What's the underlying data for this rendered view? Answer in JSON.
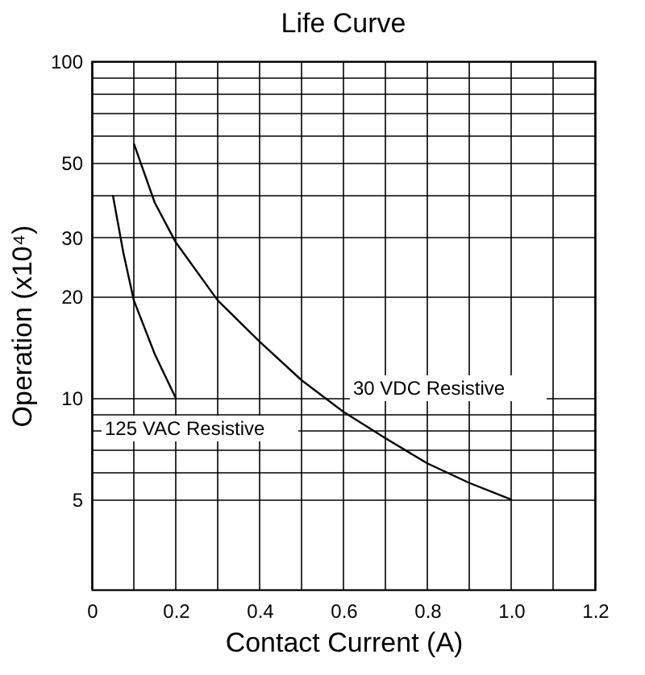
{
  "chart_data": {
    "type": "line",
    "title": "Life Curve",
    "xlabel": "Contact Current (A)",
    "ylabel": "Operation (x10⁴)",
    "log": "y",
    "grid": true,
    "marker": "none",
    "line_style": "solid",
    "xlim": [
      0,
      1.2
    ],
    "ylim": [
      2.7,
      100
    ],
    "xticks": [
      0,
      {
        "value": 0.1,
        "label": null
      },
      0.2,
      {
        "value": 0.3,
        "label": null
      },
      0.4,
      {
        "value": 0.5,
        "label": null
      },
      0.6,
      {
        "value": 0.7,
        "label": null
      },
      0.8,
      {
        "value": 0.9,
        "label": null
      },
      {
        "value": 1,
        "label": "1.0"
      },
      {
        "value": 1.1,
        "label": null
      },
      1.2
    ],
    "yticks": [
      5,
      {
        "value": 6,
        "label": null
      },
      {
        "value": 7,
        "label": null
      },
      {
        "value": 8,
        "label": null
      },
      {
        "value": 9,
        "label": null
      },
      10,
      20,
      30,
      {
        "value": 40,
        "label": null
      },
      50,
      {
        "value": 60,
        "label": null
      },
      {
        "value": 70,
        "label": null
      },
      {
        "value": 80,
        "label": null
      },
      {
        "value": 90,
        "label": null
      },
      100
    ],
    "series": [
      {
        "name": "30 VDC Resistive",
        "color": "#000000",
        "x": [
          0.1,
          0.15,
          0.2,
          0.3,
          0.4,
          0.5,
          0.6,
          0.7,
          0.8,
          0.9,
          1.0
        ],
        "values": [
          57,
          38,
          29,
          19.5,
          14.7,
          11.3,
          9.1,
          7.6,
          6.4,
          5.6,
          5
        ]
      },
      {
        "name": "125 VAC Resistive",
        "color": "#000000",
        "x": [
          0.05,
          0.075,
          0.1,
          0.15,
          0.2
        ],
        "values": [
          40,
          27,
          19.5,
          13.5,
          10
        ]
      }
    ]
  }
}
